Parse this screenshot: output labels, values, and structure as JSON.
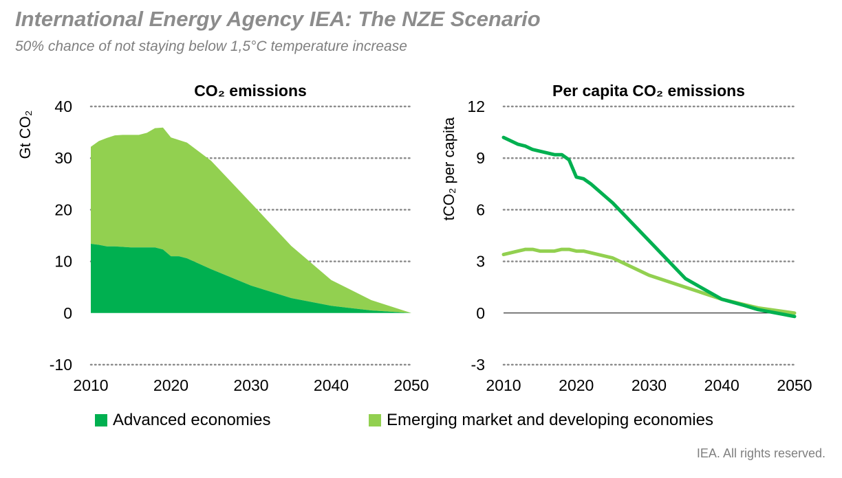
{
  "header": {
    "title": "International Energy Agency IEA: The NZE Scenario",
    "subtitle": "50% chance of not staying below 1,5°C temperature increase"
  },
  "colors": {
    "advanced": "#00b050",
    "emerging": "#92d050",
    "grid": "#8c8c8c"
  },
  "legend": {
    "advanced": "Advanced economies",
    "emerging": "Emerging market and developing economies"
  },
  "footer": "IEA. All rights reserved.",
  "chart_data": [
    {
      "type": "area",
      "stacked": true,
      "title": "CO₂ emissions",
      "ylabel": "Gt CO₂",
      "xlabel": "",
      "xlim": [
        2010,
        2050
      ],
      "ylim": [
        -10,
        40
      ],
      "xticks": [
        "2010",
        "2020",
        "2030",
        "2040",
        "2050"
      ],
      "yticks": [
        "-10",
        "0",
        "10",
        "20",
        "30",
        "40"
      ],
      "grid": true,
      "x": [
        2010,
        2011,
        2012,
        2013,
        2014,
        2015,
        2016,
        2017,
        2018,
        2019,
        2020,
        2021,
        2022,
        2025,
        2030,
        2035,
        2040,
        2045,
        2050
      ],
      "series": [
        {
          "name": "Advanced economies",
          "values": [
            13.4,
            13.2,
            12.9,
            12.9,
            12.8,
            12.7,
            12.7,
            12.7,
            12.7,
            12.3,
            11.0,
            11.0,
            10.6,
            8.5,
            5.3,
            2.9,
            1.4,
            0.5,
            0
          ]
        },
        {
          "name": "Emerging market and developing economies",
          "values": [
            18.8,
            20.1,
            21.0,
            21.5,
            21.7,
            21.8,
            21.8,
            22.2,
            23.1,
            23.6,
            23.0,
            22.5,
            22.4,
            21.0,
            16.0,
            10.1,
            5.0,
            2.0,
            0
          ]
        }
      ]
    },
    {
      "type": "line",
      "title": "Per capita CO₂ emissions",
      "ylabel": "tCO₂ per capita",
      "xlabel": "",
      "xlim": [
        2010,
        2050
      ],
      "ylim": [
        -3,
        12
      ],
      "xticks": [
        "2010",
        "2020",
        "2030",
        "2040",
        "2050"
      ],
      "yticks": [
        "-3",
        "0",
        "3",
        "6",
        "9",
        "12"
      ],
      "grid": true,
      "x": [
        2010,
        2011,
        2012,
        2013,
        2014,
        2015,
        2016,
        2017,
        2018,
        2019,
        2020,
        2021,
        2022,
        2025,
        2030,
        2035,
        2040,
        2043,
        2045,
        2050
      ],
      "series": [
        {
          "name": "Advanced economies",
          "values": [
            10.2,
            10.0,
            9.8,
            9.7,
            9.5,
            9.4,
            9.3,
            9.2,
            9.2,
            8.9,
            7.9,
            7.8,
            7.5,
            6.4,
            4.2,
            2.0,
            0.8,
            0.45,
            0.2,
            -0.2
          ]
        },
        {
          "name": "Emerging market and developing economies",
          "values": [
            3.4,
            3.5,
            3.6,
            3.7,
            3.7,
            3.6,
            3.6,
            3.6,
            3.7,
            3.7,
            3.6,
            3.6,
            3.5,
            3.2,
            2.2,
            1.5,
            0.8,
            0.5,
            0.3,
            0
          ]
        }
      ]
    }
  ]
}
